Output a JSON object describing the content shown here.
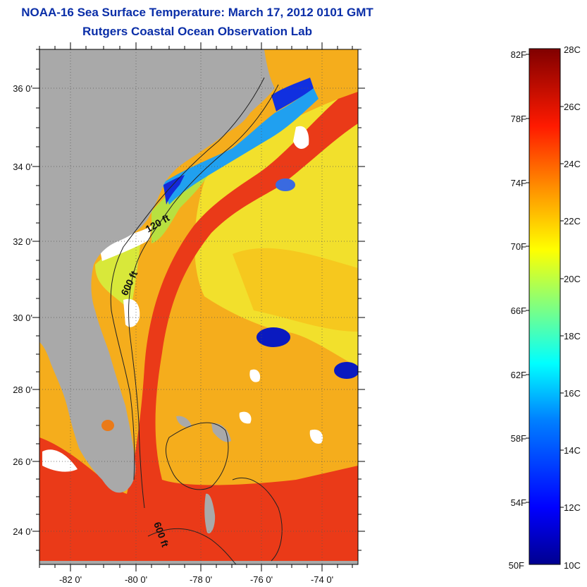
{
  "title": "NOAA-16 Sea Surface Temperature:  March 17, 2012 0101 GMT",
  "subtitle": "Rutgers Coastal Ocean Observation Lab",
  "lon_ticks": [
    "-82 0'",
    "-80 0'",
    "-78 0'",
    "-76 0'",
    "-74 0'"
  ],
  "lat_ticks": [
    "36 0'",
    "34 0'",
    "32 0'",
    "30 0'",
    "28 0'",
    "26 0'",
    "24 0'"
  ],
  "isobaths": [
    "120 ft",
    "600 ft",
    "600 ft"
  ],
  "colorbar": {
    "fahrenheit": [
      "82F",
      "78F",
      "74F",
      "70F",
      "66F",
      "62F",
      "58F",
      "54F",
      "50F"
    ],
    "celsius": [
      "28C",
      "26C",
      "24C",
      "22C",
      "20C",
      "18C",
      "16C",
      "14C",
      "12C",
      "10C"
    ],
    "range_c": [
      10,
      28
    ],
    "colors": [
      "#00008f",
      "#0000ff",
      "#0080ff",
      "#00ffff",
      "#80ff80",
      "#ffff00",
      "#ff8000",
      "#ff0000",
      "#800000"
    ]
  },
  "colors": {
    "land": "#a9a9a9",
    "cloud": "#ffffff",
    "title": "#0a2ea8",
    "gulf_stream": "#e8301a",
    "sargasso": "#f5a31a",
    "shelf": "#f0e020"
  }
}
